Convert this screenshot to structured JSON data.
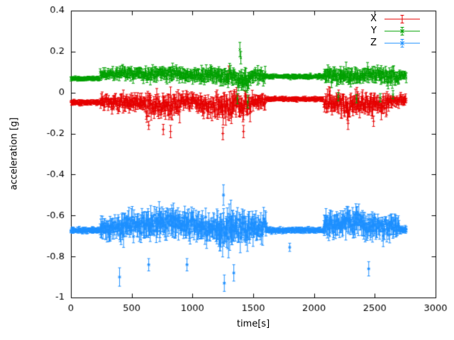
{
  "chart_data": {
    "type": "scatter",
    "title": "",
    "xlabel": "time[s]",
    "ylabel": "acceleration [g]",
    "xlim": [
      0,
      3000
    ],
    "ylim": [
      -1,
      0.4
    ],
    "xticks": [
      0,
      500,
      1000,
      1500,
      2000,
      2500,
      3000
    ],
    "xtick_labels": [
      "0",
      "500",
      "1000",
      "1500",
      "2000",
      "2500",
      "3000"
    ],
    "yticks": [
      -1,
      -0.8,
      -0.6,
      -0.4,
      -0.2,
      0,
      0.2,
      0.4
    ],
    "ytick_labels": [
      "-1",
      "-0.8",
      "-0.6",
      "-0.4",
      "-0.2",
      "0",
      "0.2",
      "0.4"
    ],
    "grid": false,
    "legend_position": "top-right",
    "sample_step": 4,
    "series": [
      {
        "name": "X",
        "color": "#e60000",
        "marker": "plus",
        "style": "yerrorbars",
        "segments": [
          [
            0,
            240,
            -0.048,
            0.006,
            0.012
          ],
          [
            240,
            330,
            -0.045,
            0.02,
            0.025
          ],
          [
            330,
            480,
            -0.055,
            0.035,
            0.03
          ],
          [
            480,
            620,
            -0.05,
            0.03,
            0.03
          ],
          [
            620,
            780,
            -0.07,
            0.045,
            0.04
          ],
          [
            780,
            900,
            -0.065,
            0.05,
            0.045
          ],
          [
            900,
            1040,
            -0.045,
            0.035,
            0.03
          ],
          [
            1040,
            1180,
            -0.06,
            0.04,
            0.035
          ],
          [
            1180,
            1330,
            -0.07,
            0.055,
            0.05
          ],
          [
            1330,
            1480,
            -0.055,
            0.05,
            0.045
          ],
          [
            1480,
            1600,
            -0.045,
            0.03,
            0.03
          ],
          [
            1600,
            2080,
            -0.032,
            0.005,
            0.01
          ],
          [
            2080,
            2200,
            -0.05,
            0.04,
            0.035
          ],
          [
            2200,
            2350,
            -0.06,
            0.045,
            0.04
          ],
          [
            2350,
            2500,
            -0.055,
            0.045,
            0.04
          ],
          [
            2500,
            2620,
            -0.06,
            0.04,
            0.035
          ],
          [
            2620,
            2760,
            -0.038,
            0.02,
            0.02
          ]
        ],
        "events": [
          [
            1300,
            0.1,
            0.03
          ],
          [
            1285,
            0.07,
            0.02
          ],
          [
            820,
            -0.19,
            0.03
          ],
          [
            760,
            -0.18,
            0.025
          ],
          [
            1250,
            -0.2,
            0.03
          ],
          [
            1420,
            -0.19,
            0.03
          ],
          [
            2280,
            -0.15,
            0.03
          ],
          [
            2490,
            -0.14,
            0.025
          ],
          [
            640,
            -0.16,
            0.02
          ]
        ]
      },
      {
        "name": "Y",
        "color": "#00a000",
        "marker": "cross",
        "style": "yerrorbars",
        "segments": [
          [
            0,
            240,
            0.068,
            0.005,
            0.01
          ],
          [
            240,
            400,
            0.09,
            0.02,
            0.02
          ],
          [
            400,
            560,
            0.095,
            0.025,
            0.022
          ],
          [
            560,
            720,
            0.09,
            0.025,
            0.025
          ],
          [
            720,
            900,
            0.095,
            0.028,
            0.025
          ],
          [
            900,
            1060,
            0.09,
            0.025,
            0.025
          ],
          [
            1060,
            1220,
            0.085,
            0.03,
            0.028
          ],
          [
            1220,
            1360,
            0.08,
            0.035,
            0.03
          ],
          [
            1360,
            1480,
            0.065,
            0.045,
            0.035
          ],
          [
            1480,
            1600,
            0.085,
            0.025,
            0.025
          ],
          [
            1600,
            2080,
            0.078,
            0.006,
            0.01
          ],
          [
            2080,
            2240,
            0.085,
            0.03,
            0.027
          ],
          [
            2240,
            2400,
            0.08,
            0.035,
            0.03
          ],
          [
            2400,
            2560,
            0.085,
            0.03,
            0.028
          ],
          [
            2560,
            2700,
            0.08,
            0.035,
            0.03
          ],
          [
            2700,
            2760,
            0.085,
            0.02,
            0.02
          ]
        ],
        "events": [
          [
            1390,
            0.21,
            0.035
          ],
          [
            1398,
            0.17,
            0.03
          ],
          [
            1370,
            -0.03,
            0.025
          ],
          [
            1455,
            -0.045,
            0.03
          ],
          [
            2200,
            -0.02,
            0.02
          ],
          [
            2350,
            -0.03,
            0.02
          ],
          [
            2545,
            -0.025,
            0.02
          ],
          [
            2650,
            -0.01,
            0.02
          ]
        ]
      },
      {
        "name": "Z",
        "color": "#1e90ff",
        "marker": "star",
        "style": "yerrorbars",
        "segments": [
          [
            0,
            240,
            -0.672,
            0.007,
            0.013
          ],
          [
            240,
            400,
            -0.66,
            0.035,
            0.045
          ],
          [
            400,
            560,
            -0.655,
            0.045,
            0.05
          ],
          [
            560,
            720,
            -0.645,
            0.05,
            0.055
          ],
          [
            720,
            900,
            -0.63,
            0.05,
            0.06
          ],
          [
            900,
            1060,
            -0.65,
            0.05,
            0.055
          ],
          [
            1060,
            1200,
            -0.66,
            0.05,
            0.055
          ],
          [
            1200,
            1340,
            -0.665,
            0.07,
            0.08
          ],
          [
            1340,
            1500,
            -0.655,
            0.06,
            0.065
          ],
          [
            1500,
            1610,
            -0.66,
            0.045,
            0.05
          ],
          [
            1610,
            2080,
            -0.672,
            0.007,
            0.012
          ],
          [
            2080,
            2240,
            -0.645,
            0.045,
            0.05
          ],
          [
            2240,
            2400,
            -0.635,
            0.05,
            0.055
          ],
          [
            2400,
            2560,
            -0.65,
            0.045,
            0.05
          ],
          [
            2560,
            2700,
            -0.655,
            0.045,
            0.045
          ],
          [
            2700,
            2760,
            -0.67,
            0.012,
            0.015
          ]
        ],
        "events": [
          [
            400,
            -0.9,
            0.045
          ],
          [
            1255,
            -0.5,
            0.05
          ],
          [
            1262,
            -0.93,
            0.04
          ],
          [
            1800,
            -0.755,
            0.02
          ],
          [
            2450,
            -0.86,
            0.035
          ],
          [
            955,
            -0.84,
            0.03
          ],
          [
            640,
            -0.84,
            0.03
          ],
          [
            1340,
            -0.88,
            0.04
          ]
        ]
      }
    ]
  }
}
